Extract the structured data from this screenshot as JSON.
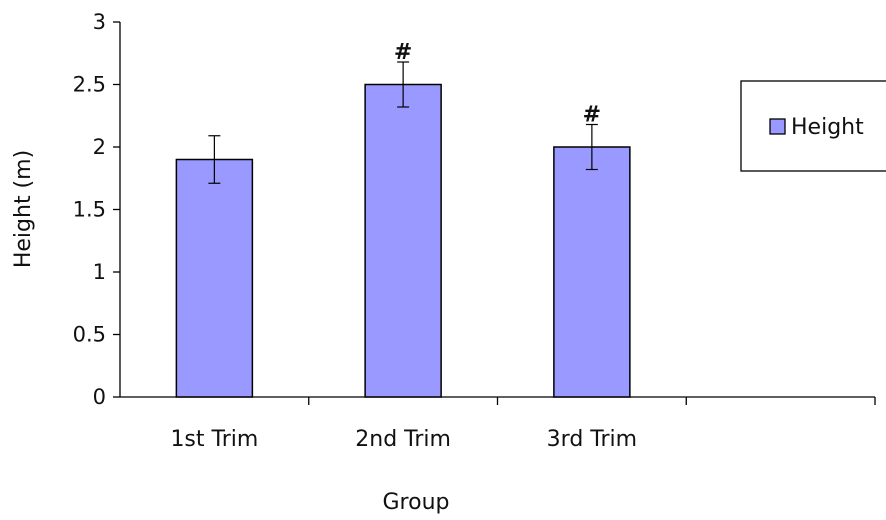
{
  "chart_data": {
    "type": "bar",
    "title": "",
    "xlabel": "Group",
    "ylabel": "Height (m)",
    "categories": [
      "1st Trim",
      "2nd Trim",
      "3rd Trim"
    ],
    "series": [
      {
        "name": "Height",
        "values": [
          1.9,
          2.5,
          2.0
        ],
        "error": [
          0.19,
          0.18,
          0.18
        ],
        "color": "#9999ff"
      }
    ],
    "annotations": [
      "",
      "#",
      "#"
    ],
    "ylim": [
      0,
      3
    ],
    "yticks": [
      0,
      0.5,
      1,
      1.5,
      2,
      2.5,
      3
    ],
    "ytick_labels": [
      "0",
      "0.5",
      "1",
      "1.5",
      "2",
      "2.5",
      "3"
    ],
    "legend": {
      "position": "right",
      "entries": [
        "Height"
      ]
    },
    "grid": false
  }
}
